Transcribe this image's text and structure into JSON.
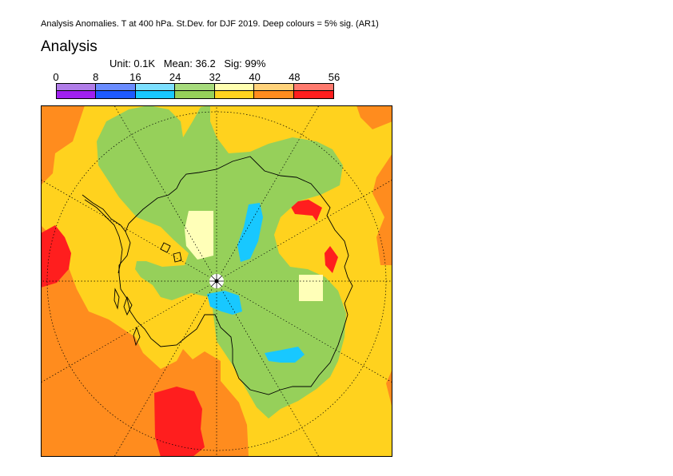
{
  "title": "Analysis Anomalies. T at 400 hPa. St.Dev. for DJF 2019.  Deep colours = 5% sig. (AR1)",
  "heading": "Analysis",
  "stats": {
    "unit": "Unit: 0.1K",
    "mean": "Mean: 36.2",
    "sig": "Sig: 99%"
  },
  "legend": {
    "ticks": [
      "0",
      "8",
      "16",
      "24",
      "32",
      "40",
      "48",
      "56"
    ],
    "light_colors": [
      "#b07ce8",
      "#6a8cff",
      "#7cdfff",
      "#a6db7c",
      "#fffab0",
      "#ffff80",
      "#ffc07a",
      "#ff7a6e"
    ],
    "deep_colors": [
      "#a020f0",
      "#1e5aff",
      "#18c8ff",
      "#96d05a",
      "#ffd21e",
      "#ffd21e",
      "#ff8c1e",
      "#ff1e1e"
    ],
    "band_colors": [
      "#b07ce8",
      "#6a8cff",
      "#7cdfff",
      "#a6db7c",
      "#ffffb0",
      "#ffd27a",
      "#ff7a6e"
    ],
    "band_deep": [
      "#a020f0",
      "#1e5aff",
      "#18c8ff",
      "#96d05a",
      "#ffd21e",
      "#ff8c1e",
      "#ff1e1e"
    ]
  },
  "map": {
    "projection": "polar stereographic (south pole)",
    "fill_colors": {
      "orange": "#ff8c1e",
      "yellow": "#ffd21e",
      "green": "#96d05a",
      "cyan": "#18c8ff",
      "pale": "#ffffb8",
      "red": "#ff1e1e"
    }
  }
}
